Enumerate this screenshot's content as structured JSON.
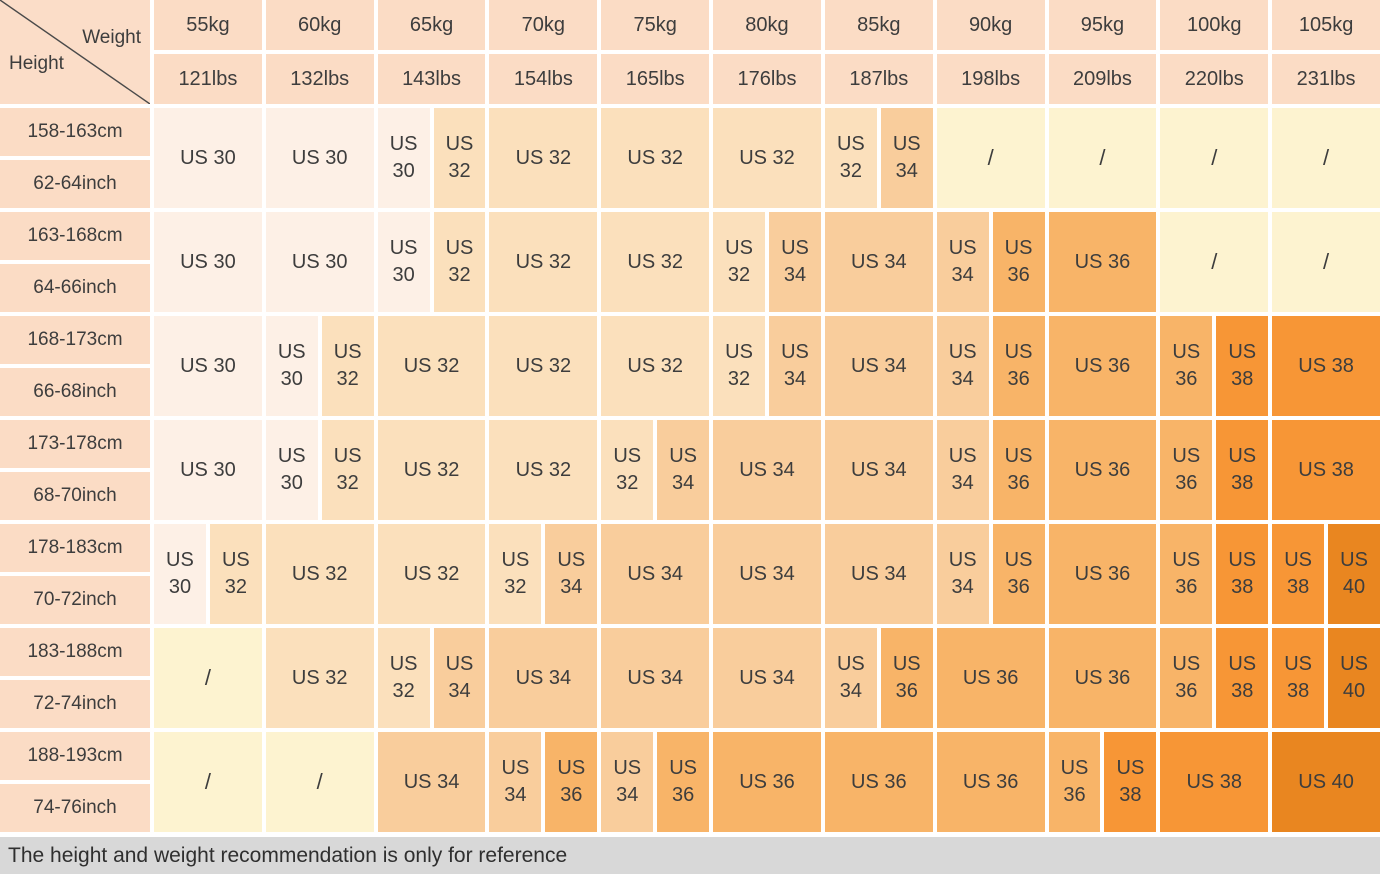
{
  "corner": {
    "weight_label": "Weight",
    "height_label": "Height"
  },
  "footer": {
    "note": "The height and weight recommendation is only for reference"
  },
  "colors": {
    "US 30": "#FDF0E6",
    "US 32": "#FBE0BC",
    "US 34": "#F9CD9C",
    "US 36": "#F8B468",
    "US 38": "#F79636",
    "US 40": "#E98620",
    "/": "#FDF3D0",
    "header_bg": "#FBDCC5",
    "footer_bg": "#D8D8D8",
    "text": "#3D3D3D"
  },
  "chart_data": {
    "type": "table",
    "title": "",
    "weight_columns": [
      {
        "kg": "55kg",
        "lbs": "121lbs"
      },
      {
        "kg": "60kg",
        "lbs": "132lbs"
      },
      {
        "kg": "65kg",
        "lbs": "143lbs"
      },
      {
        "kg": "70kg",
        "lbs": "154lbs"
      },
      {
        "kg": "75kg",
        "lbs": "165lbs"
      },
      {
        "kg": "80kg",
        "lbs": "176lbs"
      },
      {
        "kg": "85kg",
        "lbs": "187lbs"
      },
      {
        "kg": "90kg",
        "lbs": "198lbs"
      },
      {
        "kg": "95kg",
        "lbs": "209lbs"
      },
      {
        "kg": "100kg",
        "lbs": "220lbs"
      },
      {
        "kg": "105kg",
        "lbs": "231lbs"
      }
    ],
    "height_rows": [
      {
        "cm": "158-163cm",
        "inch": "62-64inch",
        "cells": [
          [
            "US 30"
          ],
          [
            "US 30"
          ],
          [
            "US 30",
            "US 32"
          ],
          [
            "US 32"
          ],
          [
            "US 32"
          ],
          [
            "US 32"
          ],
          [
            "US 32",
            "US 34"
          ],
          [
            "/"
          ],
          [
            "/"
          ],
          [
            "/"
          ],
          [
            "/"
          ]
        ]
      },
      {
        "cm": "163-168cm",
        "inch": "64-66inch",
        "cells": [
          [
            "US 30"
          ],
          [
            "US 30"
          ],
          [
            "US 30",
            "US 32"
          ],
          [
            "US 32"
          ],
          [
            "US 32"
          ],
          [
            "US 32",
            "US 34"
          ],
          [
            "US 34"
          ],
          [
            "US 34",
            "US 36"
          ],
          [
            "US 36"
          ],
          [
            "/"
          ],
          [
            "/"
          ]
        ]
      },
      {
        "cm": "168-173cm",
        "inch": "66-68inch",
        "cells": [
          [
            "US 30"
          ],
          [
            "US 30",
            "US 32"
          ],
          [
            "US 32"
          ],
          [
            "US 32"
          ],
          [
            "US 32"
          ],
          [
            "US 32",
            "US 34"
          ],
          [
            "US 34"
          ],
          [
            "US 34",
            "US 36"
          ],
          [
            "US 36"
          ],
          [
            "US 36",
            "US 38"
          ],
          [
            "US 38"
          ]
        ]
      },
      {
        "cm": "173-178cm",
        "inch": "68-70inch",
        "cells": [
          [
            "US 30"
          ],
          [
            "US 30",
            "US 32"
          ],
          [
            "US 32"
          ],
          [
            "US 32"
          ],
          [
            "US 32",
            "US 34"
          ],
          [
            "US 34"
          ],
          [
            "US 34"
          ],
          [
            "US 34",
            "US 36"
          ],
          [
            "US 36"
          ],
          [
            "US 36",
            "US 38"
          ],
          [
            "US 38"
          ]
        ]
      },
      {
        "cm": "178-183cm",
        "inch": "70-72inch",
        "cells": [
          [
            "US 30",
            "US 32"
          ],
          [
            "US 32"
          ],
          [
            "US 32"
          ],
          [
            "US 32",
            "US 34"
          ],
          [
            "US 34"
          ],
          [
            "US 34"
          ],
          [
            "US 34"
          ],
          [
            "US 34",
            "US 36"
          ],
          [
            "US 36"
          ],
          [
            "US 36",
            "US 38"
          ],
          [
            "US 38",
            "US 40"
          ]
        ]
      },
      {
        "cm": "183-188cm",
        "inch": "72-74inch",
        "cells": [
          [
            "/"
          ],
          [
            "US 32"
          ],
          [
            "US 32",
            "US 34"
          ],
          [
            "US 34"
          ],
          [
            "US 34"
          ],
          [
            "US 34"
          ],
          [
            "US 34",
            "US 36"
          ],
          [
            "US 36"
          ],
          [
            "US 36"
          ],
          [
            "US 36",
            "US 38"
          ],
          [
            "US 38",
            "US 40"
          ]
        ]
      },
      {
        "cm": "188-193cm",
        "inch": "74-76inch",
        "cells": [
          [
            "/"
          ],
          [
            "/"
          ],
          [
            "US 34"
          ],
          [
            "US 34",
            "US 36"
          ],
          [
            "US 34",
            "US 36"
          ],
          [
            "US 36"
          ],
          [
            "US 36"
          ],
          [
            "US 36"
          ],
          [
            "US 36",
            "US 38"
          ],
          [
            "US 38"
          ],
          [
            "US 40"
          ]
        ]
      }
    ]
  }
}
